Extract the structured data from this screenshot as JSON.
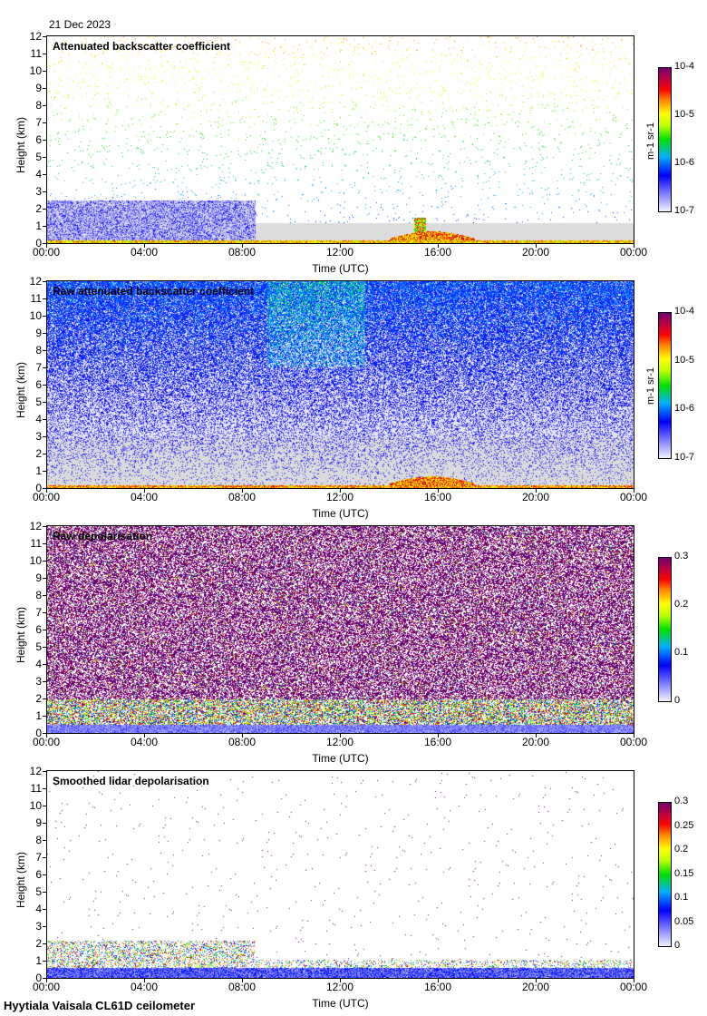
{
  "date": "21 Dec 2023",
  "footer": "Hyytiala Vaisala CL61D ceilometer",
  "x_ticks": [
    "00:00",
    "04:00",
    "08:00",
    "12:00",
    "16:00",
    "20:00",
    "00:00"
  ],
  "y_ticks": [
    "0",
    "1",
    "2",
    "3",
    "4",
    "5",
    "6",
    "7",
    "8",
    "9",
    "10",
    "11",
    "12"
  ],
  "panels": [
    {
      "title": "Attenuated backscatter coefficient",
      "ylabel": "Height (km)",
      "xlabel": "Time (UTC)",
      "colorbar": {
        "ticks": [
          "10-4",
          "10-5",
          "10-6",
          "10-7"
        ],
        "unit": "m-1 sr-1"
      }
    },
    {
      "title": "Raw attenuated backscatter coefficient",
      "ylabel": "Height (km)",
      "xlabel": "Time (UTC)",
      "colorbar": {
        "ticks": [
          "10-4",
          "10-5",
          "10-6",
          "10-7"
        ],
        "unit": "m-1 sr-1"
      }
    },
    {
      "title": "Raw depolarisation",
      "ylabel": "Height (km)",
      "xlabel": "Time (UTC)",
      "colorbar": {
        "ticks": [
          "0.3",
          "0.2",
          "0.1",
          "0"
        ],
        "unit": ""
      }
    },
    {
      "title": "Smoothed lidar depolarisation",
      "ylabel": "Height (km)",
      "xlabel": "Time (UTC)",
      "colorbar": {
        "ticks": [
          "0.3",
          "0.25",
          "0.2",
          "0.15",
          "0.1",
          "0.05",
          "0"
        ],
        "unit": ""
      }
    }
  ],
  "chart_data": [
    {
      "type": "heatmap",
      "title": "Attenuated backscatter coefficient",
      "xlabel": "Time (UTC)",
      "ylabel": "Height (km)",
      "x_range": [
        "00:00",
        "24:00"
      ],
      "ylim": [
        0,
        12
      ],
      "scale": "log",
      "clim": [
        1e-07,
        0.0001
      ],
      "unit": "m-1 sr-1",
      "features": {
        "low_noise_until_hour": 8.5,
        "cloud_base_km": [
          0.1,
          0.3
        ],
        "cloud_event_hours": [
          14,
          17.5
        ],
        "cloud_event_top_km": 1.5
      }
    },
    {
      "type": "heatmap",
      "title": "Raw attenuated backscatter coefficient",
      "xlabel": "Time (UTC)",
      "ylabel": "Height (km)",
      "x_range": [
        "00:00",
        "24:00"
      ],
      "ylim": [
        0,
        12
      ],
      "scale": "log",
      "clim": [
        1e-07,
        0.0001
      ],
      "unit": "m-1 sr-1"
    },
    {
      "type": "heatmap",
      "title": "Raw depolarisation",
      "xlabel": "Time (UTC)",
      "ylabel": "Height (km)",
      "x_range": [
        "00:00",
        "24:00"
      ],
      "ylim": [
        0,
        12
      ],
      "scale": "linear",
      "clim": [
        0,
        0.3
      ]
    },
    {
      "type": "heatmap",
      "title": "Smoothed lidar depolarisation",
      "xlabel": "Time (UTC)",
      "ylabel": "Height (km)",
      "x_range": [
        "00:00",
        "24:00"
      ],
      "ylim": [
        0,
        12
      ],
      "scale": "linear",
      "clim": [
        0,
        0.3
      ]
    }
  ]
}
